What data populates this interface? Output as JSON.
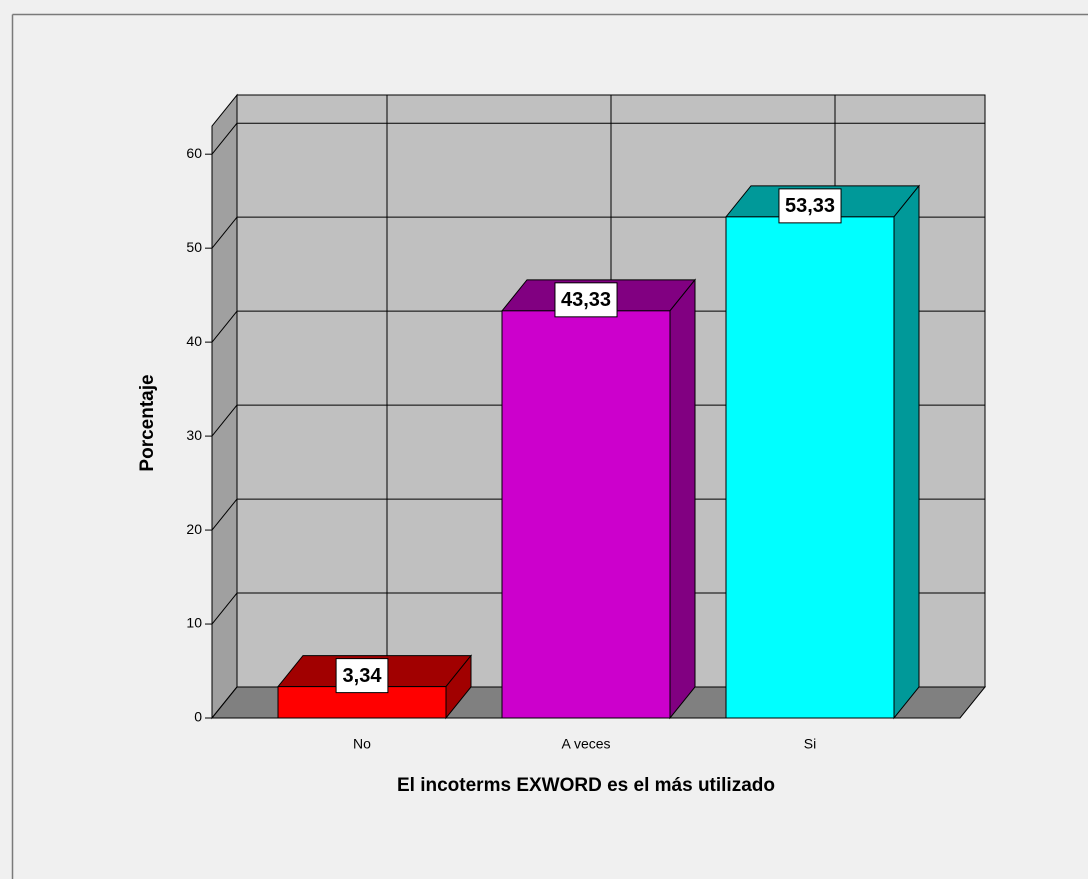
{
  "chart_data": {
    "type": "bar3d",
    "x_label": "El incoterms EXWORD es el más utilizado",
    "y_label": "Porcentaje",
    "categories": [
      "No",
      "A veces",
      "Si"
    ],
    "values": [
      3.34,
      43.33,
      53.33
    ],
    "value_labels": [
      "3,34",
      "43,33",
      "53,33"
    ],
    "colors": [
      "#ff0000",
      "#cc00cc",
      "#00ffff"
    ],
    "ylim": [
      0,
      63
    ],
    "yticks": [
      0,
      10,
      20,
      30,
      40,
      50,
      60
    ],
    "grid": true
  }
}
